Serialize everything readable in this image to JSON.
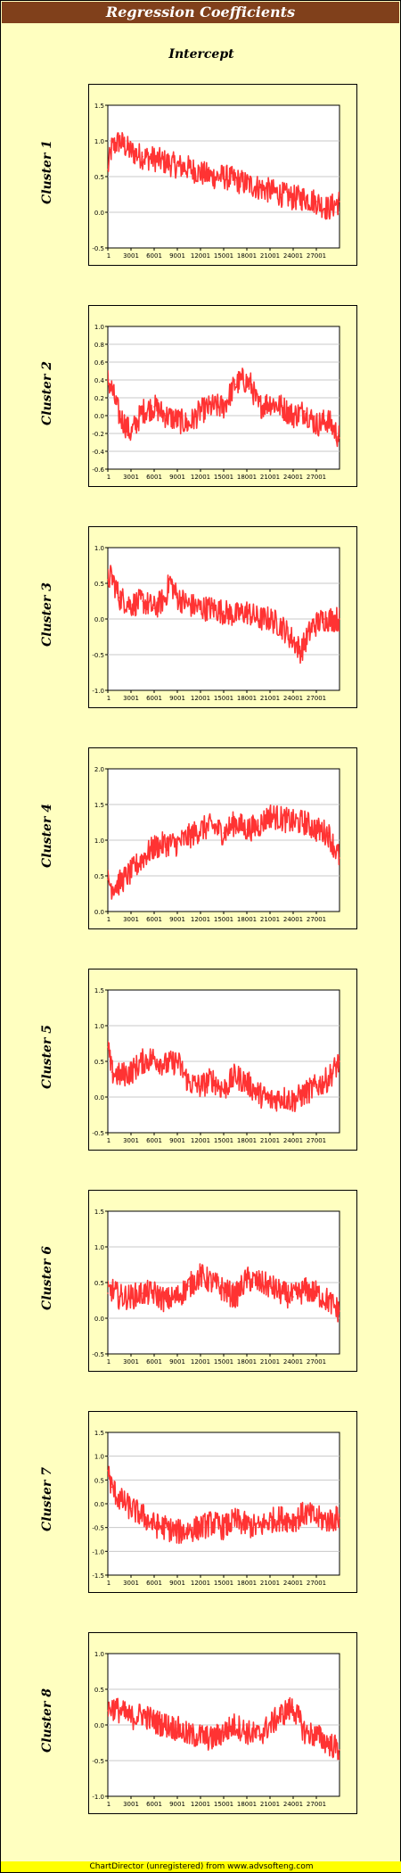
{
  "header": {
    "title": "Regression Coefficients",
    "subtitle": "Intercept"
  },
  "footer": {
    "text": "ChartDirector (unregistered) from www.advsofteng.com"
  },
  "colors": {
    "series": "#FF3333",
    "title_bar": "#80401B",
    "background": "#FFFFC0",
    "footer": "#FFFF00"
  },
  "chart_data": [
    {
      "type": "line",
      "ylabel": "Cluster 1",
      "x_ticks": [
        "1",
        "3001",
        "6001",
        "9001",
        "12001",
        "15001",
        "18001",
        "21001",
        "24001",
        "27001"
      ],
      "xlim": [
        1,
        30000
      ],
      "y_ticks": [
        "1.5",
        "1.0",
        "0.5",
        "0.0",
        "-0.5"
      ],
      "ylim": [
        -0.5,
        1.5
      ],
      "grid": true,
      "x": [
        1,
        500,
        1500,
        3000,
        4500,
        6000,
        7500,
        9000,
        10500,
        12000,
        13500,
        15000,
        16500,
        18000,
        19500,
        21000,
        22500,
        24000,
        25500,
        27000,
        28500,
        30000
      ],
      "y": [
        0.6,
        0.9,
        1.0,
        0.85,
        0.78,
        0.75,
        0.7,
        0.65,
        0.62,
        0.55,
        0.5,
        0.5,
        0.45,
        0.4,
        0.35,
        0.3,
        0.25,
        0.2,
        0.2,
        0.15,
        0.05,
        0.15
      ]
    },
    {
      "type": "line",
      "ylabel": "Cluster 2",
      "x_ticks": [
        "1",
        "3001",
        "6001",
        "9001",
        "12001",
        "15001",
        "18001",
        "21001",
        "24001",
        "27001"
      ],
      "xlim": [
        1,
        30000
      ],
      "y_ticks": [
        "1.0",
        "0.8",
        "0.6",
        "0.4",
        "0.2",
        "0.0",
        "-0.2",
        "-0.4",
        "-0.6"
      ],
      "ylim": [
        -0.6,
        1.0
      ],
      "grid": true,
      "x": [
        1,
        500,
        1500,
        3000,
        4500,
        6000,
        7500,
        9000,
        10500,
        12000,
        13500,
        15000,
        16500,
        17500,
        18500,
        19500,
        21000,
        22500,
        24000,
        25500,
        27000,
        28500,
        30000
      ],
      "y": [
        0.4,
        0.3,
        0.0,
        -0.2,
        0.05,
        0.1,
        0.0,
        -0.05,
        -0.1,
        0.05,
        0.1,
        0.1,
        0.35,
        0.4,
        0.35,
        0.1,
        0.15,
        0.1,
        0.0,
        0.05,
        -0.1,
        -0.05,
        -0.25
      ]
    },
    {
      "type": "line",
      "ylabel": "Cluster 3",
      "x_ticks": [
        "1",
        "3001",
        "6001",
        "9001",
        "12001",
        "15001",
        "18001",
        "21001",
        "24001",
        "27001"
      ],
      "xlim": [
        1,
        30000
      ],
      "y_ticks": [
        "1.0",
        "0.5",
        "0.0",
        "-0.5",
        "-1.0"
      ],
      "ylim": [
        -1.0,
        1.0
      ],
      "grid": true,
      "x": [
        1,
        500,
        1500,
        3000,
        4500,
        6000,
        7500,
        8000,
        9000,
        10500,
        12000,
        13500,
        15000,
        16500,
        18000,
        19500,
        21000,
        22500,
        24000,
        25000,
        26500,
        28000,
        30000
      ],
      "y": [
        0.55,
        0.6,
        0.3,
        0.2,
        0.25,
        0.15,
        0.3,
        0.55,
        0.3,
        0.2,
        0.15,
        0.15,
        0.1,
        0.05,
        0.1,
        0.0,
        0.0,
        -0.1,
        -0.3,
        -0.45,
        -0.1,
        0.0,
        0.0
      ]
    },
    {
      "type": "line",
      "ylabel": "Cluster 4",
      "x_ticks": [
        "1",
        "3001",
        "6001",
        "9001",
        "12001",
        "15001",
        "18001",
        "21001",
        "24001",
        "27001"
      ],
      "xlim": [
        1,
        30000
      ],
      "y_ticks": [
        "2.0",
        "1.5",
        "1.0",
        "0.5",
        "0.0"
      ],
      "ylim": [
        0.0,
        2.0
      ],
      "grid": true,
      "x": [
        1,
        500,
        1500,
        3000,
        4500,
        6000,
        7500,
        9000,
        10500,
        12000,
        13500,
        15000,
        16500,
        18000,
        19500,
        21000,
        22500,
        24000,
        25500,
        27000,
        28500,
        30000
      ],
      "y": [
        0.45,
        0.35,
        0.4,
        0.55,
        0.75,
        0.9,
        0.95,
        0.95,
        1.05,
        1.15,
        1.2,
        1.1,
        1.25,
        1.15,
        1.2,
        1.35,
        1.3,
        1.25,
        1.25,
        1.15,
        1.1,
        0.75
      ]
    },
    {
      "type": "line",
      "ylabel": "Cluster 5",
      "x_ticks": [
        "1",
        "3001",
        "6001",
        "9001",
        "12001",
        "15001",
        "18001",
        "21001",
        "24001",
        "27001"
      ],
      "xlim": [
        1,
        30000
      ],
      "y_ticks": [
        "1.5",
        "1.0",
        "0.5",
        "0.0",
        "-0.5"
      ],
      "ylim": [
        -0.5,
        1.5
      ],
      "grid": true,
      "x": [
        1,
        500,
        1500,
        3000,
        4500,
        6000,
        7500,
        9000,
        10500,
        12000,
        13500,
        15000,
        16500,
        18000,
        19500,
        21000,
        22500,
        24000,
        25500,
        27000,
        28500,
        30000
      ],
      "y": [
        0.7,
        0.35,
        0.3,
        0.35,
        0.5,
        0.55,
        0.45,
        0.5,
        0.2,
        0.15,
        0.25,
        0.1,
        0.3,
        0.2,
        0.05,
        -0.05,
        0.0,
        -0.05,
        0.05,
        0.15,
        0.25,
        0.5
      ]
    },
    {
      "type": "line",
      "ylabel": "Cluster 6",
      "x_ticks": [
        "1",
        "3001",
        "6001",
        "9001",
        "12001",
        "15001",
        "18001",
        "21001",
        "24001",
        "27001"
      ],
      "xlim": [
        1,
        30000
      ],
      "y_ticks": [
        "1.5",
        "1.0",
        "0.5",
        "0.0",
        "-0.5"
      ],
      "ylim": [
        -0.5,
        1.5
      ],
      "grid": true,
      "x": [
        1,
        500,
        1500,
        3000,
        4500,
        6000,
        7500,
        9000,
        10500,
        12000,
        13500,
        15000,
        16500,
        18000,
        19500,
        21000,
        22500,
        24000,
        25500,
        27000,
        28500,
        30000
      ],
      "y": [
        0.35,
        0.4,
        0.3,
        0.3,
        0.35,
        0.35,
        0.25,
        0.3,
        0.45,
        0.6,
        0.5,
        0.4,
        0.3,
        0.55,
        0.5,
        0.45,
        0.35,
        0.3,
        0.4,
        0.35,
        0.25,
        0.1
      ]
    },
    {
      "type": "line",
      "ylabel": "Cluster 7",
      "x_ticks": [
        "1",
        "3001",
        "6001",
        "9001",
        "12001",
        "15001",
        "18001",
        "21001",
        "24001",
        "27001"
      ],
      "xlim": [
        1,
        30000
      ],
      "y_ticks": [
        "1.5",
        "1.0",
        "0.5",
        "0.0",
        "-0.5",
        "-1.0",
        "-1.5"
      ],
      "ylim": [
        -1.5,
        1.5
      ],
      "grid": true,
      "x": [
        1,
        500,
        1500,
        3000,
        4500,
        6000,
        7500,
        9000,
        10500,
        12000,
        13500,
        15000,
        16500,
        18000,
        19500,
        21000,
        22500,
        24000,
        25500,
        27000,
        28500,
        30000
      ],
      "y": [
        0.7,
        0.35,
        0.1,
        -0.1,
        -0.25,
        -0.45,
        -0.5,
        -0.6,
        -0.55,
        -0.5,
        -0.4,
        -0.5,
        -0.35,
        -0.45,
        -0.5,
        -0.35,
        -0.3,
        -0.35,
        -0.2,
        -0.3,
        -0.35,
        -0.3
      ]
    },
    {
      "type": "line",
      "ylabel": "Cluster 8",
      "x_ticks": [
        "1",
        "3001",
        "6001",
        "9001",
        "12001",
        "15001",
        "18001",
        "21001",
        "24001",
        "27001"
      ],
      "xlim": [
        1,
        30000
      ],
      "y_ticks": [
        "1.0",
        "0.5",
        "0.0",
        "-0.5",
        "-1.0"
      ],
      "ylim": [
        -1.0,
        1.0
      ],
      "grid": true,
      "x": [
        1,
        500,
        1500,
        3000,
        4500,
        6000,
        7500,
        9000,
        10500,
        12000,
        13500,
        15000,
        16500,
        18000,
        19500,
        21000,
        22500,
        24000,
        25500,
        27000,
        28500,
        30000
      ],
      "y": [
        0.2,
        0.25,
        0.2,
        0.1,
        0.15,
        0.05,
        0.0,
        -0.05,
        -0.15,
        -0.15,
        -0.2,
        -0.1,
        0.0,
        -0.1,
        -0.15,
        0.0,
        0.15,
        0.25,
        -0.1,
        -0.15,
        -0.25,
        -0.35
      ]
    }
  ]
}
